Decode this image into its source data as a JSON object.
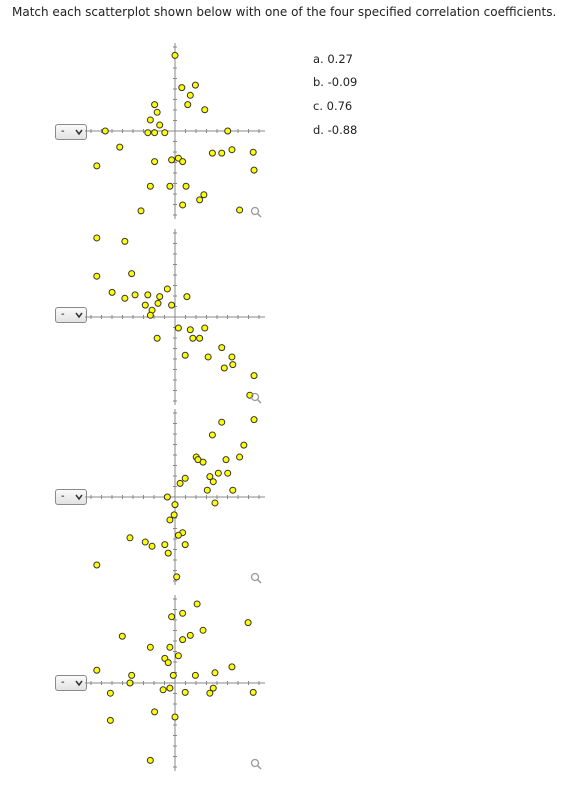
{
  "header": {
    "title": "Match each scatterplot shown below with one of the four specified correlation coefficients."
  },
  "options": [
    "a. 0.27",
    "b. -0.09",
    "c. 0.76",
    "d. -0.88"
  ],
  "selects": [
    "-",
    "-",
    "-",
    "-"
  ],
  "plots": [
    {
      "points": [
        [
          0,
          0.89
        ],
        [
          0.24,
          0.54
        ],
        [
          0.08,
          0.51
        ],
        [
          0.18,
          0.42
        ],
        [
          -0.24,
          0.31
        ],
        [
          0.15,
          0.31
        ],
        [
          0.35,
          0.25
        ],
        [
          -0.21,
          0.22
        ],
        [
          -0.29,
          0.13
        ],
        [
          -0.18,
          0.07
        ],
        [
          -0.32,
          -0.02
        ],
        [
          -0.24,
          -0.02
        ],
        [
          -0.12,
          -0.02
        ],
        [
          -0.82,
          0
        ],
        [
          0.62,
          0
        ],
        [
          -0.65,
          -0.19
        ],
        [
          -0.92,
          -0.41
        ],
        [
          -0.24,
          -0.36
        ],
        [
          -0.04,
          -0.34
        ],
        [
          0.04,
          -0.32
        ],
        [
          0.09,
          -0.36
        ],
        [
          0.44,
          -0.26
        ],
        [
          0.55,
          -0.26
        ],
        [
          0.67,
          -0.22
        ],
        [
          0.92,
          -0.25
        ],
        [
          0.93,
          -0.46
        ],
        [
          -0.29,
          -0.65
        ],
        [
          -0.06,
          -0.65
        ],
        [
          0.13,
          -0.65
        ],
        [
          0.34,
          -0.75
        ],
        [
          0.09,
          -0.87
        ],
        [
          0.29,
          -0.81
        ],
        [
          -0.4,
          -0.94
        ],
        [
          0.76,
          -0.93
        ]
      ]
    },
    {
      "points": [
        [
          -0.92,
          0.93
        ],
        [
          -0.59,
          0.89
        ],
        [
          -0.92,
          0.48
        ],
        [
          -0.51,
          0.51
        ],
        [
          -0.74,
          0.29
        ],
        [
          -0.59,
          0.22
        ],
        [
          -0.47,
          0.26
        ],
        [
          -0.32,
          0.26
        ],
        [
          -0.18,
          0.24
        ],
        [
          -0.09,
          0.33
        ],
        [
          0.14,
          0.24
        ],
        [
          -0.35,
          0.14
        ],
        [
          -0.27,
          0.08
        ],
        [
          -0.04,
          0.14
        ],
        [
          -0.2,
          0.16
        ],
        [
          -0.29,
          0.02
        ],
        [
          0.04,
          -0.13
        ],
        [
          0.18,
          -0.15
        ],
        [
          0.35,
          -0.13
        ],
        [
          0.21,
          -0.25
        ],
        [
          0.29,
          -0.25
        ],
        [
          -0.21,
          -0.25
        ],
        [
          0.12,
          -0.45
        ],
        [
          0.39,
          -0.47
        ],
        [
          0.55,
          -0.36
        ],
        [
          0.67,
          -0.47
        ],
        [
          0.58,
          -0.6
        ],
        [
          0.93,
          -0.69
        ],
        [
          0.88,
          -0.92
        ],
        [
          0.68,
          -0.56
        ]
      ]
    },
    {
      "points": [
        [
          0.93,
          0.91
        ],
        [
          0.55,
          0.88
        ],
        [
          0.81,
          0.61
        ],
        [
          0.44,
          0.73
        ],
        [
          0.76,
          0.47
        ],
        [
          0.25,
          0.47
        ],
        [
          0.33,
          0.41
        ],
        [
          0.27,
          0.44
        ],
        [
          0.6,
          0.44
        ],
        [
          0.51,
          0.28
        ],
        [
          0.41,
          0.24
        ],
        [
          0.62,
          0.28
        ],
        [
          0.45,
          0.18
        ],
        [
          0.38,
          0.08
        ],
        [
          0.68,
          0.08
        ],
        [
          0.47,
          -0.07
        ],
        [
          0.12,
          0.22
        ],
        [
          0.06,
          0.16
        ],
        [
          -0.09,
          0
        ],
        [
          0,
          -0.09
        ],
        [
          -0.01,
          -0.21
        ],
        [
          -0.06,
          -0.27
        ],
        [
          0.09,
          -0.42
        ],
        [
          0.12,
          -0.56
        ],
        [
          0.04,
          -0.45
        ],
        [
          -0.12,
          -0.56
        ],
        [
          -0.53,
          -0.48
        ],
        [
          -0.35,
          -0.53
        ],
        [
          -0.27,
          -0.58
        ],
        [
          -0.08,
          -0.66
        ],
        [
          -0.92,
          -0.8
        ],
        [
          0.02,
          -0.94
        ]
      ]
    },
    {
      "points": [
        [
          0.26,
          0.93
        ],
        [
          -0.04,
          0.78
        ],
        [
          0.09,
          0.82
        ],
        [
          0.86,
          0.71
        ],
        [
          -0.62,
          0.55
        ],
        [
          0.33,
          0.62
        ],
        [
          0.18,
          0.56
        ],
        [
          0.09,
          0.51
        ],
        [
          -0.06,
          0.42
        ],
        [
          -0.29,
          0.42
        ],
        [
          -0.12,
          0.29
        ],
        [
          0.04,
          0.32
        ],
        [
          -0.08,
          0.24
        ],
        [
          -0.92,
          0.15
        ],
        [
          -0.51,
          0.09
        ],
        [
          -0.53,
          0
        ],
        [
          -0.02,
          0.09
        ],
        [
          0.24,
          0.09
        ],
        [
          0.47,
          0.12
        ],
        [
          0.67,
          0.19
        ],
        [
          -0.14,
          -0.08
        ],
        [
          -0.06,
          -0.06
        ],
        [
          0.12,
          -0.11
        ],
        [
          0.41,
          -0.12
        ],
        [
          0.45,
          -0.06
        ],
        [
          0.92,
          -0.11
        ],
        [
          -0.76,
          -0.12
        ],
        [
          -0.24,
          -0.34
        ],
        [
          0,
          -0.4
        ],
        [
          -0.76,
          -0.44
        ],
        [
          -0.29,
          -0.91
        ]
      ]
    }
  ]
}
